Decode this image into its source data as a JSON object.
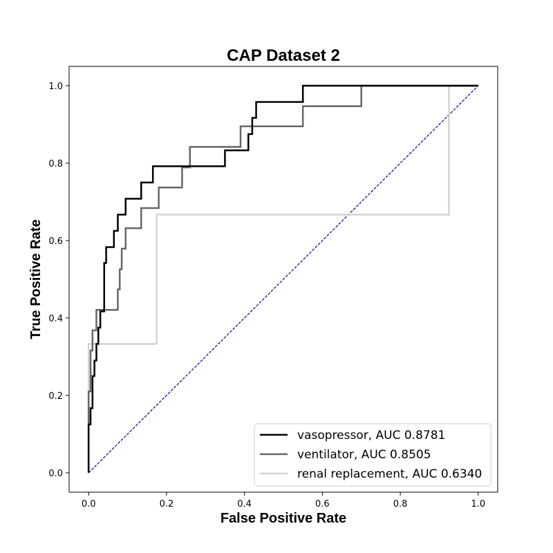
{
  "chart_data": {
    "type": "line",
    "title": "CAP Dataset 2",
    "xlabel": "False Positive Rate",
    "ylabel": "True Positive Rate",
    "xlim": [
      -0.05,
      1.05
    ],
    "ylim": [
      -0.05,
      1.05
    ],
    "xticks": [
      "0.0",
      "0.2",
      "0.4",
      "0.6",
      "0.8",
      "1.0"
    ],
    "yticks": [
      "0.0",
      "0.2",
      "0.4",
      "0.6",
      "0.8",
      "1.0"
    ],
    "grid": false,
    "legend_position": "lower-right",
    "series": [
      {
        "name": "vasopressor, AUC 0.8781",
        "color": "#000000",
        "x": [
          0,
          0,
          0.005,
          0.005,
          0.01,
          0.01,
          0.015,
          0.015,
          0.02,
          0.02,
          0.025,
          0.025,
          0.03,
          0.03,
          0.04,
          0.04,
          0.045,
          0.045,
          0.065,
          0.065,
          0.075,
          0.075,
          0.08,
          0.08,
          0.095,
          0.095,
          0.125,
          0.125,
          0.135,
          0.135,
          0.15,
          0.15,
          0.165,
          0.165,
          0.35,
          0.35,
          0.41,
          0.41,
          0.42,
          0.42,
          0.43,
          0.43,
          0.53,
          0.53,
          0.55,
          0.55,
          1.0
        ],
        "y": [
          0,
          0.125,
          0.125,
          0.167,
          0.167,
          0.25,
          0.25,
          0.29,
          0.29,
          0.333,
          0.333,
          0.375,
          0.375,
          0.417,
          0.417,
          0.542,
          0.542,
          0.583,
          0.583,
          0.625,
          0.625,
          0.667,
          0.667,
          0.667,
          0.667,
          0.708,
          0.708,
          0.708,
          0.708,
          0.75,
          0.75,
          0.75,
          0.75,
          0.792,
          0.792,
          0.833,
          0.833,
          0.875,
          0.875,
          0.917,
          0.917,
          0.958,
          0.958,
          0.958,
          0.958,
          1.0,
          1.0
        ]
      },
      {
        "name": "ventilator, AUC 0.8505",
        "color": "#666666",
        "x": [
          0,
          0,
          0.005,
          0.005,
          0.01,
          0.01,
          0.02,
          0.02,
          0.075,
          0.075,
          0.08,
          0.08,
          0.085,
          0.085,
          0.095,
          0.095,
          0.115,
          0.115,
          0.135,
          0.135,
          0.18,
          0.18,
          0.24,
          0.24,
          0.26,
          0.26,
          0.39,
          0.39,
          0.55,
          0.55,
          0.7,
          0.7,
          1.0
        ],
        "y": [
          0,
          0.21,
          0.21,
          0.316,
          0.316,
          0.368,
          0.368,
          0.421,
          0.421,
          0.474,
          0.474,
          0.526,
          0.526,
          0.579,
          0.579,
          0.632,
          0.632,
          0.632,
          0.632,
          0.684,
          0.684,
          0.737,
          0.737,
          0.789,
          0.789,
          0.842,
          0.842,
          0.895,
          0.895,
          0.947,
          0.947,
          1.0,
          1.0
        ]
      },
      {
        "name": "renal replacement, AUC 0.6340",
        "color": "#d3d3d3",
        "x": [
          0,
          0,
          0.175,
          0.175,
          0.925,
          0.925,
          1.0
        ],
        "y": [
          0,
          0.333,
          0.333,
          0.667,
          0.667,
          1.0,
          1.0
        ]
      },
      {
        "color": "#00008b",
        "style": "dashed",
        "x": [
          0,
          1
        ],
        "y": [
          0,
          1
        ]
      }
    ]
  }
}
